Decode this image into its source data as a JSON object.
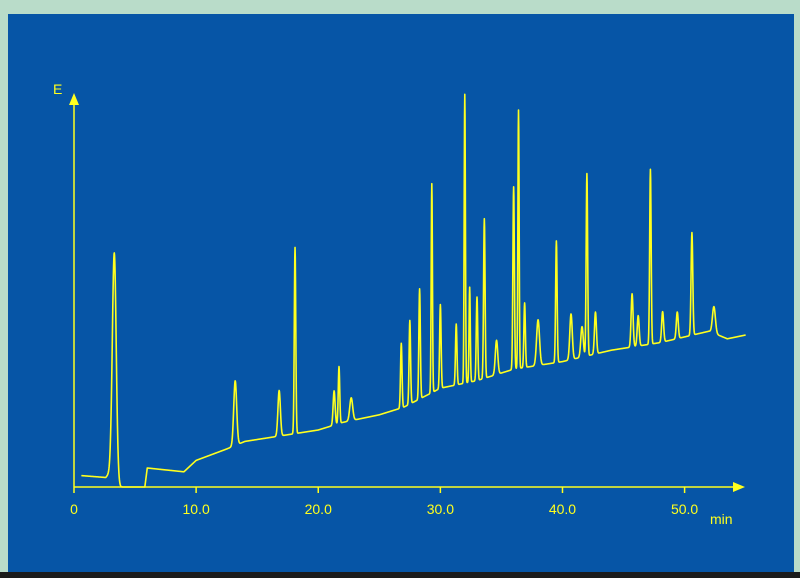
{
  "colors": {
    "background": "#b9dcc9",
    "panel": "#0655a6",
    "trace": "#ffff1e",
    "bottom_bar": "#1b1b1b"
  },
  "chart_data": {
    "type": "line",
    "title": "",
    "ylabel": "E",
    "xlabel": "min",
    "xlim": [
      0,
      55
    ],
    "ylim": [
      0,
      100
    ],
    "grid": false,
    "x_ticks": [
      {
        "value": 0,
        "label": "0"
      },
      {
        "value": 10,
        "label": "10.0"
      },
      {
        "value": 20,
        "label": "20.0"
      },
      {
        "value": 30,
        "label": "30.0"
      },
      {
        "value": 40,
        "label": "40.0"
      },
      {
        "value": 50,
        "label": "50.0"
      }
    ],
    "baseline": [
      [
        0.6,
        3
      ],
      [
        2.6,
        2.5
      ],
      [
        3.0,
        4
      ],
      [
        3.5,
        0
      ],
      [
        5.8,
        0
      ],
      [
        6.0,
        5
      ],
      [
        9.0,
        4
      ],
      [
        10.0,
        7
      ],
      [
        12.5,
        10
      ],
      [
        14.0,
        12
      ],
      [
        16.0,
        13
      ],
      [
        18.0,
        14
      ],
      [
        20.0,
        15
      ],
      [
        22.0,
        17
      ],
      [
        25.0,
        19
      ],
      [
        27.0,
        21
      ],
      [
        30.0,
        26
      ],
      [
        33.0,
        28
      ],
      [
        36.0,
        31
      ],
      [
        40.0,
        33
      ],
      [
        44.0,
        36
      ],
      [
        48.0,
        38
      ],
      [
        52.0,
        41
      ],
      [
        53.5,
        39
      ],
      [
        55.0,
        40
      ]
    ],
    "peaks": [
      {
        "t": 3.3,
        "h": 60,
        "w": 0.16
      },
      {
        "t": 13.2,
        "h": 17,
        "w": 0.12
      },
      {
        "t": 16.8,
        "h": 12,
        "w": 0.1
      },
      {
        "t": 18.1,
        "h": 49,
        "w": 0.06
      },
      {
        "t": 21.3,
        "h": 9,
        "w": 0.08
      },
      {
        "t": 21.7,
        "h": 15,
        "w": 0.06
      },
      {
        "t": 22.7,
        "h": 6,
        "w": 0.12
      },
      {
        "t": 26.8,
        "h": 17,
        "w": 0.06
      },
      {
        "t": 27.5,
        "h": 22,
        "w": 0.06
      },
      {
        "t": 28.3,
        "h": 29,
        "w": 0.06
      },
      {
        "t": 29.3,
        "h": 55,
        "w": 0.05
      },
      {
        "t": 30.0,
        "h": 22,
        "w": 0.06
      },
      {
        "t": 31.3,
        "h": 16,
        "w": 0.06
      },
      {
        "t": 32.0,
        "h": 76,
        "w": 0.05
      },
      {
        "t": 32.4,
        "h": 25,
        "w": 0.05
      },
      {
        "t": 33.0,
        "h": 22,
        "w": 0.06
      },
      {
        "t": 33.6,
        "h": 42,
        "w": 0.06
      },
      {
        "t": 34.6,
        "h": 9,
        "w": 0.1
      },
      {
        "t": 36.0,
        "h": 48,
        "w": 0.06
      },
      {
        "t": 36.4,
        "h": 68,
        "w": 0.05
      },
      {
        "t": 36.9,
        "h": 17,
        "w": 0.06
      },
      {
        "t": 38.0,
        "h": 12,
        "w": 0.12
      },
      {
        "t": 39.5,
        "h": 32,
        "w": 0.06
      },
      {
        "t": 40.7,
        "h": 12,
        "w": 0.1
      },
      {
        "t": 41.6,
        "h": 8,
        "w": 0.1
      },
      {
        "t": 42.0,
        "h": 48,
        "w": 0.06
      },
      {
        "t": 42.7,
        "h": 11,
        "w": 0.08
      },
      {
        "t": 45.7,
        "h": 14,
        "w": 0.08
      },
      {
        "t": 46.2,
        "h": 8,
        "w": 0.08
      },
      {
        "t": 47.2,
        "h": 46,
        "w": 0.06
      },
      {
        "t": 48.2,
        "h": 8,
        "w": 0.08
      },
      {
        "t": 49.4,
        "h": 7,
        "w": 0.08
      },
      {
        "t": 50.6,
        "h": 27,
        "w": 0.07
      },
      {
        "t": 52.4,
        "h": 7,
        "w": 0.12
      }
    ]
  }
}
